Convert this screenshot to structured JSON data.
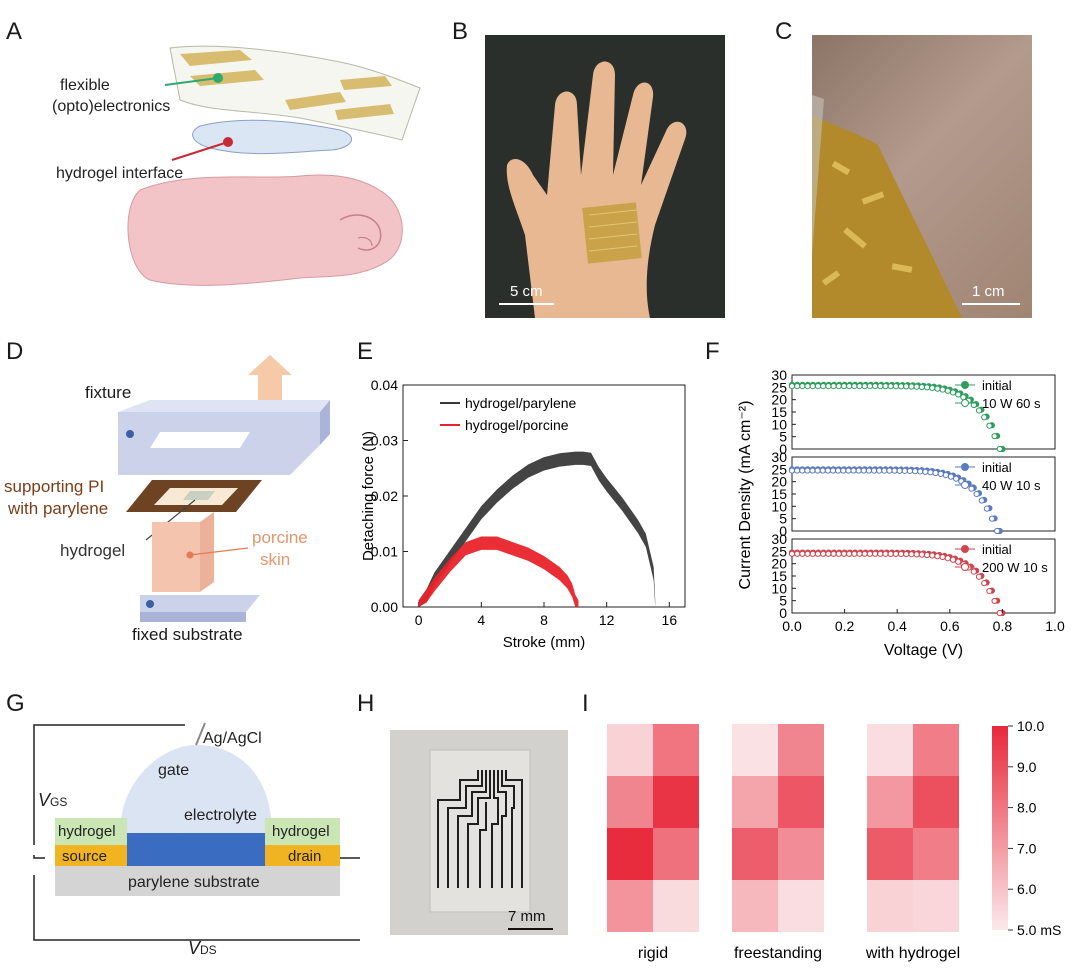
{
  "panels": {
    "A": {
      "label": "A",
      "annotations": [
        "flexible",
        "(opto)electronics",
        "hydrogel interface"
      ]
    },
    "B": {
      "label": "B",
      "scale": "5 cm"
    },
    "C": {
      "label": "C",
      "scale": "1 cm"
    },
    "D": {
      "label": "D",
      "annotations": {
        "fixture": "fixture",
        "pi_line1": "supporting PI",
        "pi_line2": "with parylene",
        "hydrogel": "hydrogel",
        "porcine_line1": "porcine",
        "porcine_line2": "skin",
        "substrate": "fixed substrate"
      }
    },
    "E": {
      "label": "E"
    },
    "F": {
      "label": "F"
    },
    "G": {
      "label": "G",
      "annotations": {
        "agagcl": "Ag/AgCl",
        "gate": "gate",
        "vgs_main": "V",
        "vgs_sub": "GS",
        "electrolyte": "electrolyte",
        "hydrogel_left": "hydrogel",
        "hydrogel_right": "hydrogel",
        "source": "source",
        "drain": "drain",
        "substrate": "parylene substrate",
        "vds_main": "V",
        "vds_sub": "DS"
      }
    },
    "H": {
      "label": "H",
      "scale": "7 mm"
    },
    "I": {
      "label": "I"
    }
  },
  "colors": {
    "parylene_series": "#3a3a3a",
    "porcine_series": "#e8232a",
    "f_green": "#2e9e5e",
    "f_blue": "#5b7bbf",
    "f_red": "#d0454f",
    "heat_max": "#e8283a",
    "heat_min": "#fbe9eb",
    "hydrogel_layer": "#c9e6b4",
    "channel": "#3a6cc2",
    "electrode": "#f0b422",
    "substrate_layer": "#d4d4d4",
    "electrolyte": "#dce4f1"
  },
  "chart_data": [
    {
      "id": "E",
      "type": "line",
      "xlabel": "Stroke (mm)",
      "ylabel": "Detaching force (N)",
      "xlim": [
        -1,
        17
      ],
      "ylim": [
        0,
        0.04
      ],
      "xticks": [
        "0",
        "4",
        "8",
        "12",
        "16"
      ],
      "yticks": [
        "0.00",
        "0.01",
        "0.02",
        "0.03",
        "0.04"
      ],
      "legend_position": "top-center",
      "series": [
        {
          "name": "hydrogel/parylene",
          "x": [
            0,
            0.5,
            1,
            2,
            3,
            4,
            5,
            6,
            7,
            8,
            9,
            10,
            10.5,
            11,
            11.5,
            12,
            13,
            14,
            14.5,
            15,
            15.1
          ],
          "y": [
            0,
            0.002,
            0.005,
            0.009,
            0.013,
            0.017,
            0.02,
            0.0225,
            0.0245,
            0.0258,
            0.0265,
            0.0268,
            0.0268,
            0.0266,
            0.024,
            0.022,
            0.0185,
            0.0145,
            0.012,
            0.006,
            0
          ]
        },
        {
          "name": "hydrogel/porcine",
          "x": [
            0,
            0.5,
            1,
            2,
            3,
            4,
            5,
            6,
            7,
            8,
            9,
            9.5,
            9.8,
            10,
            10.2
          ],
          "y": [
            0,
            0.002,
            0.004,
            0.0075,
            0.0105,
            0.0115,
            0.0115,
            0.0105,
            0.0095,
            0.008,
            0.006,
            0.0045,
            0.003,
            0.001,
            0
          ]
        }
      ]
    },
    {
      "id": "F",
      "type": "line",
      "xlabel": "Voltage (V)",
      "ylabel": "Current Density (mA cm⁻²)",
      "xlim": [
        0,
        1.0
      ],
      "ylim": [
        0,
        30
      ],
      "xticks": [
        "0.0",
        "0.2",
        "0.4",
        "0.6",
        "0.8",
        "1.0"
      ],
      "yticks": [
        "0",
        "5",
        "10",
        "15",
        "20",
        "25",
        "30"
      ],
      "legend_position": "top-right",
      "subplots": [
        {
          "series": [
            {
              "name": "initial",
              "jsc": 26,
              "voc": 0.8,
              "markers": "filled"
            },
            {
              "name": "10 W 60 s",
              "jsc": 25.5,
              "voc": 0.79,
              "markers": "open"
            }
          ]
        },
        {
          "series": [
            {
              "name": "initial",
              "jsc": 25,
              "voc": 0.79,
              "markers": "filled"
            },
            {
              "name": "40 W 10 s",
              "jsc": 24.5,
              "voc": 0.78,
              "markers": "open"
            }
          ]
        },
        {
          "series": [
            {
              "name": "initial",
              "jsc": 24.5,
              "voc": 0.8,
              "markers": "filled"
            },
            {
              "name": "200 W 10 s",
              "jsc": 24,
              "voc": 0.79,
              "markers": "open"
            }
          ]
        }
      ]
    },
    {
      "id": "I",
      "type": "heatmap",
      "unit": "mS",
      "vmin": 5.0,
      "vmax": 10.0,
      "colorbar_ticks": [
        "10.0",
        "9.0",
        "8.0",
        "7.0",
        "6.0",
        "5.0 mS"
      ],
      "maps": [
        {
          "label": "rigid",
          "values": [
            [
              5.6,
              8.0
            ],
            [
              7.6,
              9.7
            ],
            [
              9.9,
              8.1
            ],
            [
              7.2,
              5.4
            ]
          ]
        },
        {
          "label": "freestanding",
          "values": [
            [
              5.2,
              7.6
            ],
            [
              6.8,
              8.8
            ],
            [
              8.6,
              7.4
            ],
            [
              6.3,
              5.3
            ]
          ]
        },
        {
          "label": "with hydrogel",
          "values": [
            [
              5.3,
              7.8
            ],
            [
              7.1,
              9.0
            ],
            [
              8.7,
              7.8
            ],
            [
              5.6,
              5.5
            ]
          ]
        }
      ]
    }
  ]
}
